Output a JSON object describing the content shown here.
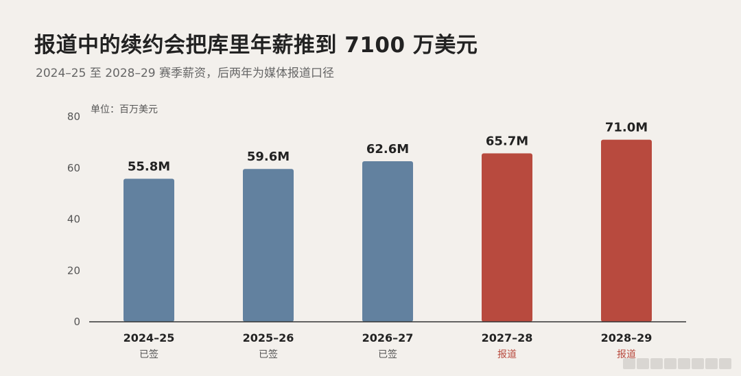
{
  "title": "报道中的续约会把库里年薪推到 7100 万美元",
  "subtitle": "2024–25 至 2028–29 赛季薪资，后两年为媒体报道口径",
  "colors": {
    "signed": "#62819f",
    "reported": "#b84a3e",
    "status_signed": "#555555",
    "status_reported": "#b84a3e"
  },
  "chart_data": {
    "type": "bar",
    "unit_label": "单位：百万美元",
    "categories": [
      "2024–25",
      "2025–26",
      "2026–27",
      "2027–28",
      "2028–29"
    ],
    "values": [
      55.8,
      59.6,
      62.6,
      65.7,
      71.0
    ],
    "data_labels": [
      "55.8M",
      "59.6M",
      "62.6M",
      "65.7M",
      "71.0M"
    ],
    "status": [
      "已签",
      "已签",
      "已签",
      "报道",
      "报道"
    ],
    "status_type": [
      "signed",
      "signed",
      "signed",
      "reported",
      "reported"
    ],
    "ylim": [
      0,
      80
    ],
    "yticks": [
      0,
      20,
      40,
      60,
      80
    ],
    "grid": false,
    "legend": "none"
  }
}
